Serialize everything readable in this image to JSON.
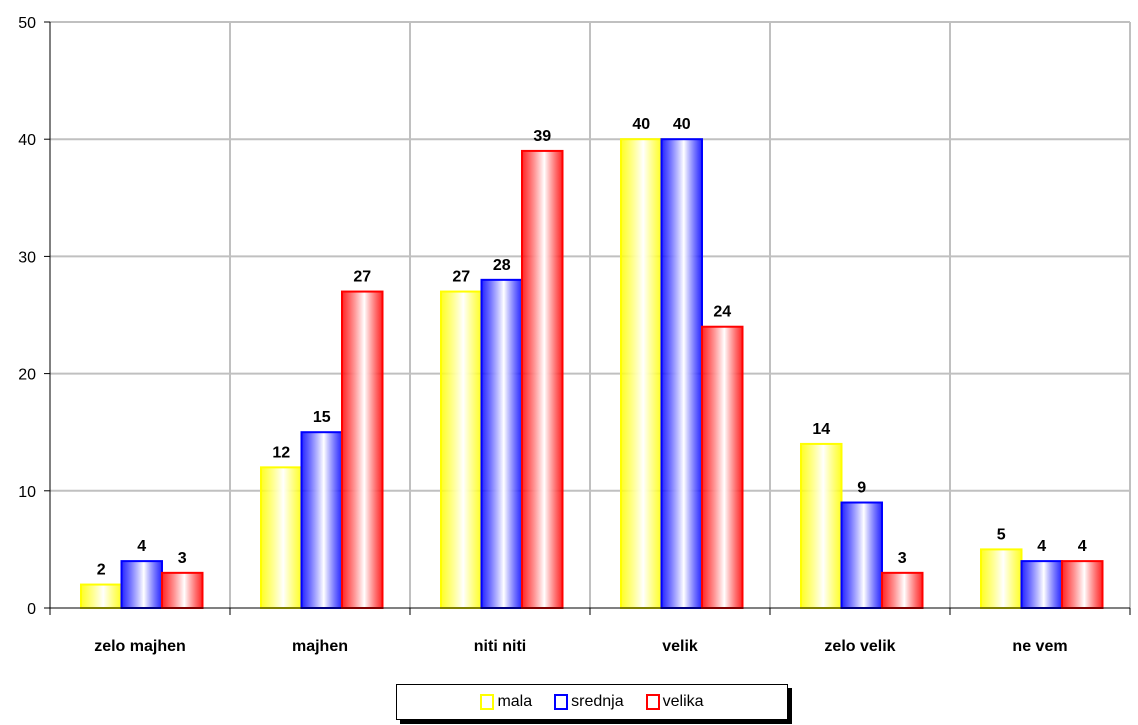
{
  "chart_data": {
    "type": "bar",
    "categories": [
      "zelo majhen",
      "majhen",
      "niti niti",
      "velik",
      "zelo velik",
      "ne vem"
    ],
    "series": [
      {
        "name": "mala",
        "color": "#ffff00",
        "values": [
          2,
          12,
          27,
          40,
          14,
          5
        ]
      },
      {
        "name": "srednja",
        "color": "#0000ff",
        "values": [
          4,
          15,
          28,
          40,
          9,
          4
        ]
      },
      {
        "name": "velika",
        "color": "#ff0000",
        "values": [
          3,
          27,
          39,
          24,
          3,
          4
        ]
      }
    ],
    "yticks": [
      "0",
      "10",
      "20",
      "30",
      "40",
      "50"
    ],
    "ylim": [
      0,
      50
    ],
    "grid": true,
    "data_labels": true,
    "legend_position": "bottom"
  }
}
